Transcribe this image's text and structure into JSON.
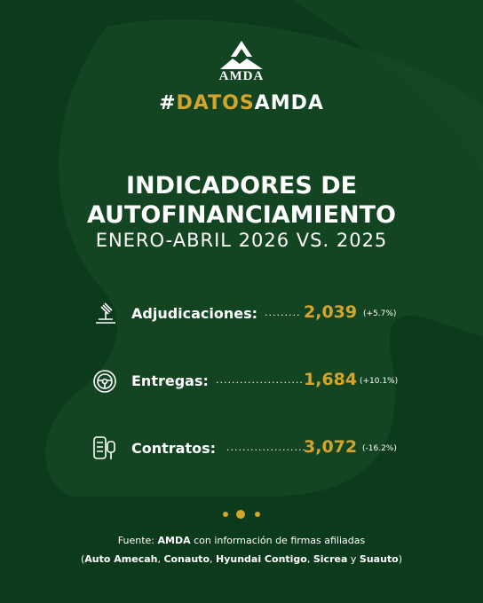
{
  "header": {
    "logo": "AMDA",
    "hashtag": [
      "#",
      "DATOS",
      "AMDA"
    ]
  },
  "title": {
    "lines": [
      "INDICADORES DE",
      "AUTOFINANCIAMIENTO"
    ],
    "subtitle": "ENERO-ABRIL 2026 VS. 2025"
  },
  "indicators": [
    {
      "label": "Adjudicaciones:",
      "leader": ".........",
      "value": "2,039",
      "change": "(+5.7%)"
    },
    {
      "label": "Entregas:",
      "leader": "......................",
      "value": "1,684",
      "change": "(+10.1%)"
    },
    {
      "label": "Contratos:",
      "leader": "....................",
      "value": "3,072",
      "change": "(-16.2%)"
    }
  ],
  "footer": {
    "line1": [
      {
        "text": "Fuente: ",
        "bold": false
      },
      {
        "text": "AMDA",
        "bold": true
      },
      {
        "text": " con información de firmas afiliadas",
        "bold": false
      }
    ],
    "line2": [
      {
        "text": "(",
        "bold": false
      },
      {
        "text": "Auto Amecah",
        "bold": true
      },
      {
        "text": ", ",
        "bold": false
      },
      {
        "text": "Conauto",
        "bold": true
      },
      {
        "text": ", ",
        "bold": false
      },
      {
        "text": "Hyundai Contigo",
        "bold": true
      },
      {
        "text": ", ",
        "bold": false
      },
      {
        "text": "Sicrea",
        "bold": true
      },
      {
        "text": " y ",
        "bold": false
      },
      {
        "text": "Suauto",
        "bold": true
      },
      {
        "text": ")",
        "bold": false
      }
    ]
  }
}
